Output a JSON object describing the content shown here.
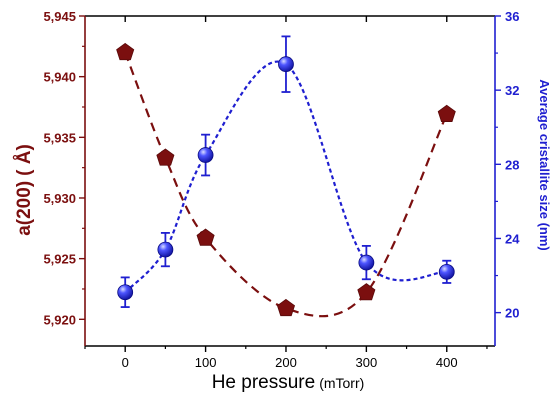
{
  "chart_data": {
    "type": "scatter",
    "x_axis": {
      "label": "He pressure",
      "unit": "(mTorr)",
      "range": [
        -50,
        460
      ],
      "ticks": [
        0,
        100,
        200,
        300,
        400
      ]
    },
    "y_axis_left": {
      "label_main": "a(200)",
      "label_unit": "( Å)",
      "range": [
        5.9178,
        5.945
      ],
      "ticks": [
        5.92,
        5.925,
        5.93,
        5.935,
        5.94,
        5.945
      ],
      "tick_labels": [
        "5,920",
        "5,925",
        "5,930",
        "5,935",
        "5,940",
        "5,945"
      ],
      "color": "#7b0f0f"
    },
    "y_axis_right": {
      "label": "Average cristallite size (nm)",
      "range": [
        18.2,
        36
      ],
      "ticks": [
        20,
        24,
        28,
        32,
        36
      ],
      "color": "#1f1fd0"
    },
    "series": [
      {
        "axis": "left",
        "marker": "pentagon",
        "color": "#7b0f0f",
        "x": [
          0,
          50,
          100,
          200,
          300,
          400
        ],
        "y": [
          5.942,
          5.9333,
          5.9267,
          5.9209,
          5.9222,
          5.9369
        ],
        "fit_line": "dashed"
      },
      {
        "axis": "right",
        "marker": "sphere",
        "color": "#1f1fd0",
        "x": [
          0,
          50,
          100,
          200,
          300,
          400
        ],
        "y": [
          21.1,
          23.4,
          28.5,
          33.4,
          22.7,
          22.2
        ],
        "error": [
          0.8,
          0.9,
          1.1,
          1.5,
          0.9,
          0.6
        ],
        "fit_line": "dotted"
      }
    ],
    "grid": false,
    "legend": "none"
  }
}
